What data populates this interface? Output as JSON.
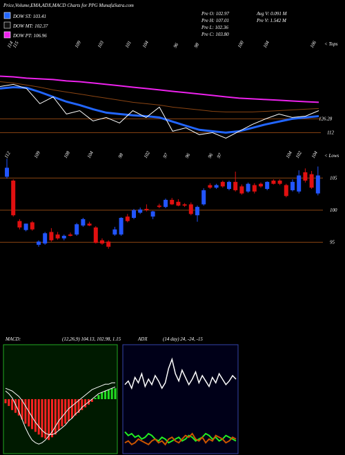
{
  "header": {
    "title": "Price,Volume,EMA,ADX,MACD Charts for PPG MunafaSutra.com"
  },
  "legend": [
    {
      "label": "DOW ST: 103.41",
      "color": "#2266ff"
    },
    {
      "label": "DOW MT: 102.37",
      "color": "#111111"
    },
    {
      "label": "DOW PT: 106.96",
      "color": "#ee22ee"
    }
  ],
  "info": [
    "Pre O: 102.97",
    "Pre H: 107.01",
    "Pre L: 102.36",
    "Pre C: 103.80",
    "Avg V: 0.091 M",
    "Pre V: 1.542 M"
  ],
  "chart_data": [
    {
      "type": "line",
      "x": [
        1,
        2,
        3,
        4,
        5,
        6,
        7,
        8,
        9,
        10,
        11,
        12,
        13,
        14,
        15,
        16,
        17,
        18,
        19,
        20,
        21,
        22,
        23,
        24,
        25
      ],
      "xlim": [
        1,
        25
      ],
      "ylim": [
        103,
        188
      ],
      "series": [
        {
          "color": "#ee22ee",
          "values": [
            170.5,
            169.8,
            168.4,
            167.7,
            167.0,
            165.6,
            164.8,
            163.4,
            162.0,
            160.6,
            159.1,
            157.7,
            156.3,
            154.8,
            153.4,
            152.0,
            150.6,
            149.1,
            147.7,
            147.0,
            146.3,
            145.6,
            144.8,
            144.1,
            143.4
          ]
        },
        {
          "color": "#8b4513",
          "values": [
            164.8,
            163.4,
            161.3,
            159.1,
            156.3,
            154.1,
            152.0,
            149.8,
            147.7,
            145.6,
            143.4,
            142.0,
            140.6,
            138.4,
            137.0,
            135.6,
            134.1,
            133.4,
            133.4,
            133.4,
            134.1,
            134.8,
            135.6,
            136.3,
            137.0
          ]
        },
        {
          "color": "#2266ff",
          "values": [
            157.7,
            159.1,
            158.4,
            154.1,
            149.1,
            144.1,
            140.6,
            136.3,
            132.7,
            131.3,
            129.9,
            129.1,
            127.7,
            123.4,
            119.1,
            114.9,
            113.4,
            112.0,
            113.4,
            117.0,
            120.6,
            123.4,
            126.3,
            127.7,
            129.1
          ]
        },
        {
          "color": "#ffffff",
          "values": [
            159.8,
            162.0,
            157.7,
            142.0,
            149.1,
            131.3,
            134.8,
            124.1,
            127.7,
            122.0,
            134.8,
            127.7,
            138.4,
            113.4,
            117.0,
            109.9,
            112.0,
            106.3,
            113.4,
            120.6,
            126.3,
            131.3,
            127.7,
            129.1,
            134.8
          ]
        }
      ],
      "levels": [
        126.28,
        112
      ],
      "level_color": "#8b4513",
      "top_labels": [
        114,
        115,
        109,
        103,
        101,
        104,
        96,
        98,
        100,
        104,
        106
      ],
      "top_note": "< Tops"
    },
    {
      "type": "candlestick",
      "open": [
        105.2,
        104.6,
        98.3,
        96.9,
        98.1,
        94.6,
        94.8,
        96.6,
        96.2,
        95.6,
        96.2,
        96.2,
        97.6,
        97.9,
        97.3,
        95.3,
        95.1,
        96.2,
        96.2,
        99.0,
        98.8,
        99.6,
        100.2,
        99.0,
        100.7,
        100.5,
        101.6,
        101.3,
        100.9,
        100.9,
        99.2,
        100.9,
        103.9,
        103.5,
        104.4,
        103.3,
        104.4,
        103.7,
        102.9,
        103.9,
        104.1,
        103.3,
        104.6,
        104.6,
        103.9,
        103.1,
        102.9,
        105.9,
        105.6,
        102.6
      ],
      "high": [
        108.0,
        104.8,
        98.6,
        97.9,
        98.3,
        95.3,
        96.6,
        97.2,
        96.6,
        96.2,
        96.5,
        98.0,
        98.8,
        98.2,
        97.5,
        95.6,
        95.3,
        97.4,
        98.9,
        99.4,
        100.2,
        100.4,
        100.9,
        99.9,
        101.0,
        101.8,
        101.9,
        101.7,
        101.1,
        101.2,
        100.7,
        103.4,
        104.2,
        104.1,
        104.6,
        104.6,
        106.0,
        104.0,
        104.3,
        104.2,
        104.3,
        104.5,
        104.8,
        104.8,
        104.1,
        104.8,
        106.2,
        106.5,
        106.1,
        106.8
      ],
      "low": [
        104.9,
        99.0,
        97.0,
        96.7,
        96.8,
        94.3,
        94.6,
        95.1,
        95.4,
        95.3,
        95.9,
        96.0,
        97.4,
        97.5,
        94.8,
        94.6,
        94.0,
        96.0,
        96.0,
        98.1,
        98.6,
        99.4,
        99.8,
        98.6,
        100.3,
        100.3,
        100.8,
        100.6,
        100.5,
        99.2,
        98.2,
        100.7,
        103.3,
        103.3,
        103.5,
        103.1,
        102.9,
        102.4,
        102.7,
        102.6,
        103.5,
        103.1,
        104.0,
        103.9,
        102.0,
        102.9,
        102.6,
        104.3,
        103.3,
        102.3
      ],
      "close": [
        106.6,
        99.2,
        97.3,
        97.9,
        97.0,
        95.1,
        96.4,
        95.3,
        95.6,
        96.0,
        96.0,
        97.8,
        98.6,
        97.6,
        94.9,
        94.8,
        94.3,
        97.0,
        98.8,
        98.3,
        100.0,
        100.1,
        100.0,
        99.8,
        100.5,
        101.6,
        100.9,
        100.7,
        100.7,
        99.4,
        100.5,
        103.1,
        103.5,
        103.9,
        103.7,
        104.4,
        103.1,
        102.6,
        104.1,
        102.9,
        103.7,
        104.4,
        104.1,
        104.1,
        102.2,
        104.4,
        105.4,
        104.6,
        103.5,
        105.4
      ],
      "up_color": "#2255ff",
      "down_color": "#e01010",
      "ylim": [
        93,
        109
      ],
      "yticks": [
        95,
        100,
        105
      ],
      "grid_color": "#8b4513",
      "low_labels": [
        112,
        109,
        108,
        104,
        98,
        102,
        97,
        96,
        96,
        97,
        104,
        102,
        104
      ],
      "low_note": "< Lows"
    },
    {
      "type": "macd",
      "title": "MACD:",
      "params": "(12,26,9) 104.13, 102.98, 1.15",
      "histogram": [
        -0.3,
        -0.5,
        -0.8,
        -1.0,
        -1.2,
        -1.5,
        -1.8,
        -2.0,
        -2.2,
        -2.4,
        -2.6,
        -2.8,
        -2.9,
        -3.0,
        -2.8,
        -2.6,
        -2.3,
        -2.0,
        -1.8,
        -1.6,
        -1.4,
        -1.2,
        -1.0,
        -0.8,
        -0.6,
        -0.4,
        -0.2,
        0.1,
        0.3,
        0.5,
        0.6,
        0.7,
        0.8,
        0.8
      ],
      "macd": [
        0.6,
        0.4,
        0.1,
        -0.4,
        -0.9,
        -1.5,
        -2.1,
        -2.6,
        -3.0,
        -3.2,
        -3.3,
        -3.2,
        -3.0,
        -2.7,
        -2.4,
        -2.0,
        -1.6,
        -1.3,
        -1.0,
        -0.7,
        -0.5,
        -0.3,
        -0.1,
        0.1,
        0.3,
        0.5,
        0.7,
        0.8,
        0.9,
        1.0,
        1.1,
        1.1,
        1.2,
        1.2
      ],
      "signal": [
        0.8,
        0.7,
        0.6,
        0.4,
        0.2,
        -0.1,
        -0.5,
        -0.9,
        -1.3,
        -1.7,
        -2.0,
        -2.3,
        -2.5,
        -2.6,
        -2.6,
        -2.5,
        -2.3,
        -2.1,
        -1.9,
        -1.6,
        -1.4,
        -1.1,
        -0.9,
        -0.6,
        -0.4,
        -0.2,
        0,
        0.2,
        0.4,
        0.5,
        0.6,
        0.7,
        0.8,
        0.9
      ],
      "ylim": [
        -4,
        4
      ],
      "pos_color": "#22dd22",
      "neg_color": "#ff2222",
      "line_color": "#ffffff",
      "background": "#001a00",
      "border": "#22aa22"
    },
    {
      "type": "adx",
      "title": "ADX",
      "params": "(14 day) 24, -24, -15",
      "series": [
        {
          "color": "#ffffff",
          "values": [
            38,
            40,
            36,
            42,
            39,
            44,
            37,
            41,
            38,
            43,
            40,
            36,
            39,
            47,
            52,
            44,
            40,
            46,
            42,
            38,
            41,
            45,
            39,
            43,
            40,
            37,
            42,
            39,
            44,
            41,
            38,
            40,
            43,
            41
          ]
        },
        {
          "color": "#22ee22",
          "values": [
            12,
            10,
            11,
            9,
            10,
            8,
            9,
            11,
            10,
            8,
            7,
            9,
            8,
            6,
            7,
            8,
            9,
            7,
            8,
            10,
            9,
            7,
            8,
            9,
            11,
            10,
            8,
            9,
            7,
            8,
            10,
            9,
            8,
            7
          ]
        },
        {
          "color": "#cc5500",
          "values": [
            6,
            7,
            5,
            6,
            8,
            7,
            6,
            5,
            7,
            8,
            6,
            7,
            5,
            8,
            9,
            7,
            6,
            8,
            10,
            9,
            11,
            8,
            7,
            9,
            6,
            8,
            7,
            10,
            9,
            8,
            6,
            7,
            9,
            8
          ]
        }
      ],
      "ylim": [
        0,
        60
      ],
      "background": "#000018",
      "border": "#3344aa"
    }
  ]
}
